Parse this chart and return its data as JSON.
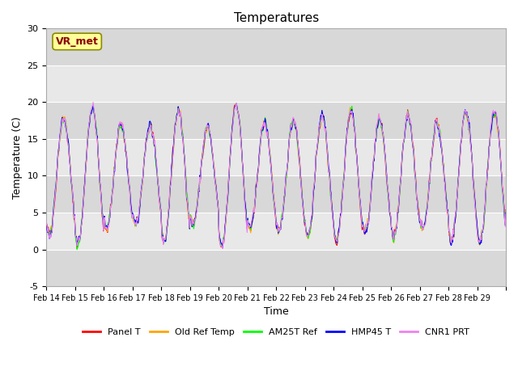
{
  "title": "Temperatures",
  "xlabel": "Time",
  "ylabel": "Temperature (C)",
  "ylim": [
    -5,
    30
  ],
  "series_colors": [
    "red",
    "orange",
    "lime",
    "blue",
    "violet"
  ],
  "series_labels": [
    "Panel T",
    "Old Ref Temp",
    "AM25T Ref",
    "HMP45 T",
    "CNR1 PRT"
  ],
  "annotation_text": "VR_met",
  "annotation_color": "#8B0000",
  "annotation_bg": "#FFFF99",
  "x_tick_labels": [
    "Feb 14",
    "Feb 15",
    "Feb 16",
    "Feb 17",
    "Feb 18",
    "Feb 19",
    "Feb 20",
    "Feb 21",
    "Feb 22",
    "Feb 23",
    "Feb 24",
    "Feb 25",
    "Feb 26",
    "Feb 27",
    "Feb 28",
    "Feb 29"
  ],
  "y_ticks": [
    -5,
    0,
    5,
    10,
    15,
    20,
    25,
    30
  ],
  "grid_color": "#cccccc",
  "bg_color": "#e8e8e8",
  "plot_bg": "#f0f0f0",
  "n_days": 16,
  "seed": 42
}
